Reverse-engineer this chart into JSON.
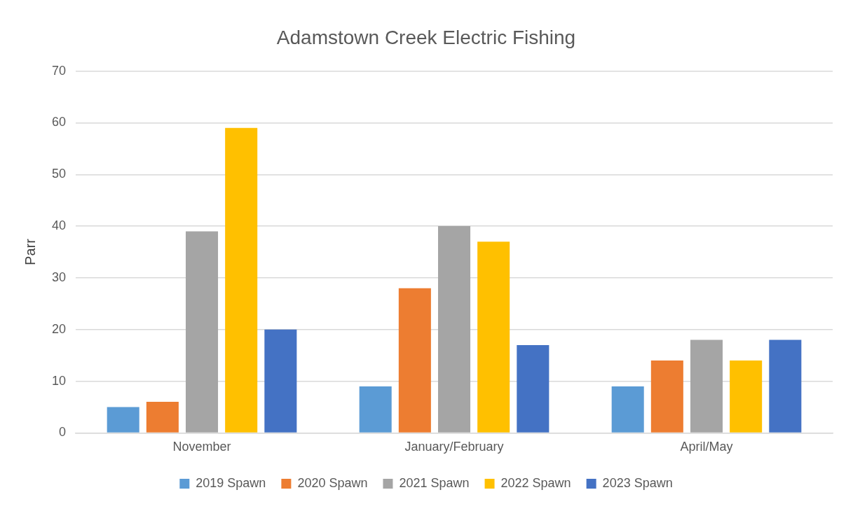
{
  "chart_data": {
    "type": "bar",
    "title": "Adamstown Creek Electric Fishing",
    "ylabel": "Parr",
    "categories": [
      "November",
      "January/February",
      "April/May"
    ],
    "series": [
      {
        "name": "2019 Spawn",
        "color": "#5b9bd5",
        "values": [
          5,
          9,
          9
        ]
      },
      {
        "name": "2020 Spawn",
        "color": "#ed7d31",
        "values": [
          6,
          28,
          14
        ]
      },
      {
        "name": "2021 Spawn",
        "color": "#a5a5a5",
        "values": [
          39,
          40,
          18
        ]
      },
      {
        "name": "2022 Spawn",
        "color": "#ffc000",
        "values": [
          59,
          37,
          14
        ]
      },
      {
        "name": "2023 Spawn",
        "color": "#4472c4",
        "values": [
          20,
          17,
          18
        ]
      }
    ],
    "ylim": [
      0,
      70
    ],
    "yticks": [
      0,
      10,
      20,
      30,
      40,
      50,
      60,
      70
    ],
    "grid": "y",
    "legend": "bottom"
  }
}
